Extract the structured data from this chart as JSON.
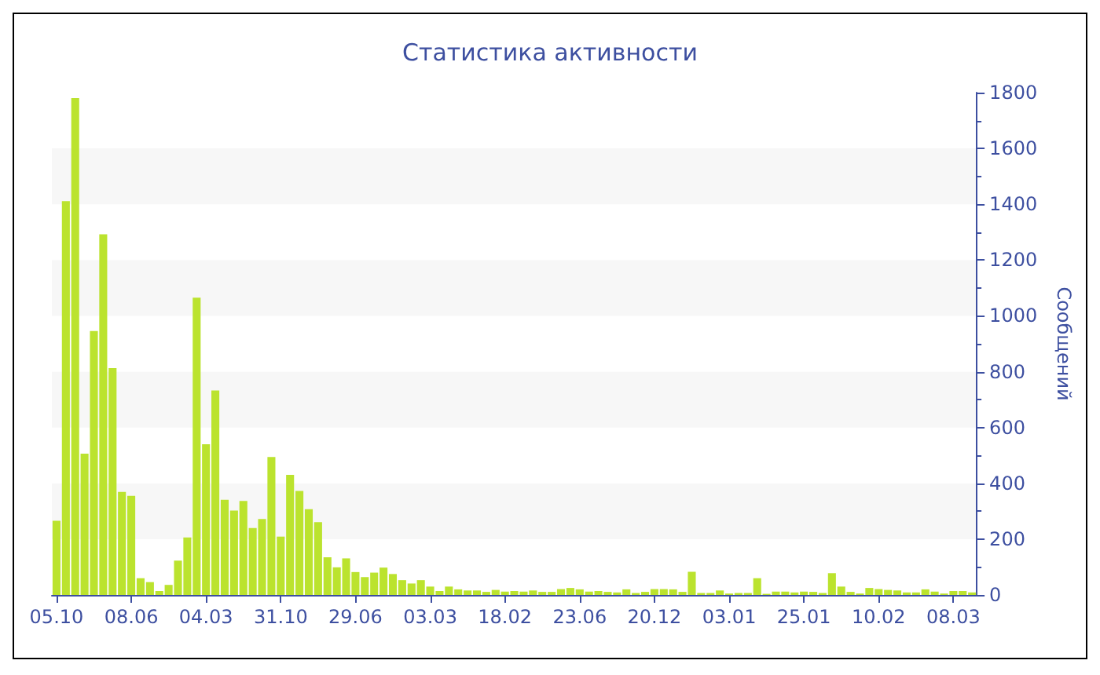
{
  "chart_data": {
    "type": "bar",
    "title": "Статистика активности",
    "ylabel": "Сообщений",
    "categories": [
      "05.10",
      null,
      null,
      null,
      null,
      null,
      null,
      null,
      "08.06",
      null,
      null,
      null,
      null,
      null,
      null,
      null,
      "04.03",
      null,
      null,
      null,
      null,
      null,
      null,
      null,
      "31.10",
      null,
      null,
      null,
      null,
      null,
      null,
      null,
      "29.06",
      null,
      null,
      null,
      null,
      null,
      null,
      null,
      "03.03",
      null,
      null,
      null,
      null,
      null,
      null,
      null,
      "18.02",
      null,
      null,
      null,
      null,
      null,
      null,
      null,
      "23.06",
      null,
      null,
      null,
      null,
      null,
      null,
      null,
      "20.12",
      null,
      null,
      null,
      null,
      null,
      null,
      null,
      "03.01",
      null,
      null,
      null,
      null,
      null,
      null,
      null,
      "25.01",
      null,
      null,
      null,
      null,
      null,
      null,
      null,
      "10.02",
      null,
      null,
      null,
      null,
      null,
      null,
      null,
      "08.03",
      null,
      null
    ],
    "values": [
      266,
      1411,
      1780,
      506,
      946,
      1292,
      813,
      369,
      355,
      60,
      46,
      14,
      36,
      123,
      206,
      1065,
      540,
      733,
      341,
      302,
      337,
      240,
      272,
      494,
      209,
      430,
      373,
      307,
      261,
      135,
      99,
      131,
      82,
      64,
      80,
      98,
      75,
      53,
      41,
      53,
      30,
      14,
      30,
      20,
      16,
      16,
      11,
      18,
      12,
      14,
      12,
      16,
      11,
      11,
      21,
      25,
      20,
      12,
      14,
      11,
      9,
      20,
      7,
      11,
      21,
      21,
      20,
      11,
      83,
      7,
      7,
      16,
      5,
      7,
      7,
      60,
      4,
      12,
      12,
      9,
      12,
      11,
      7,
      78,
      30,
      11,
      5,
      25,
      21,
      18,
      16,
      9,
      9,
      20,
      12,
      5,
      14,
      14,
      9
    ],
    "color": "#bbe32e",
    "ylim": [
      0,
      1800
    ],
    "yticks": [
      0,
      200,
      400,
      600,
      800,
      1000,
      1200,
      1400,
      1600,
      1800
    ],
    "grid": false
  }
}
